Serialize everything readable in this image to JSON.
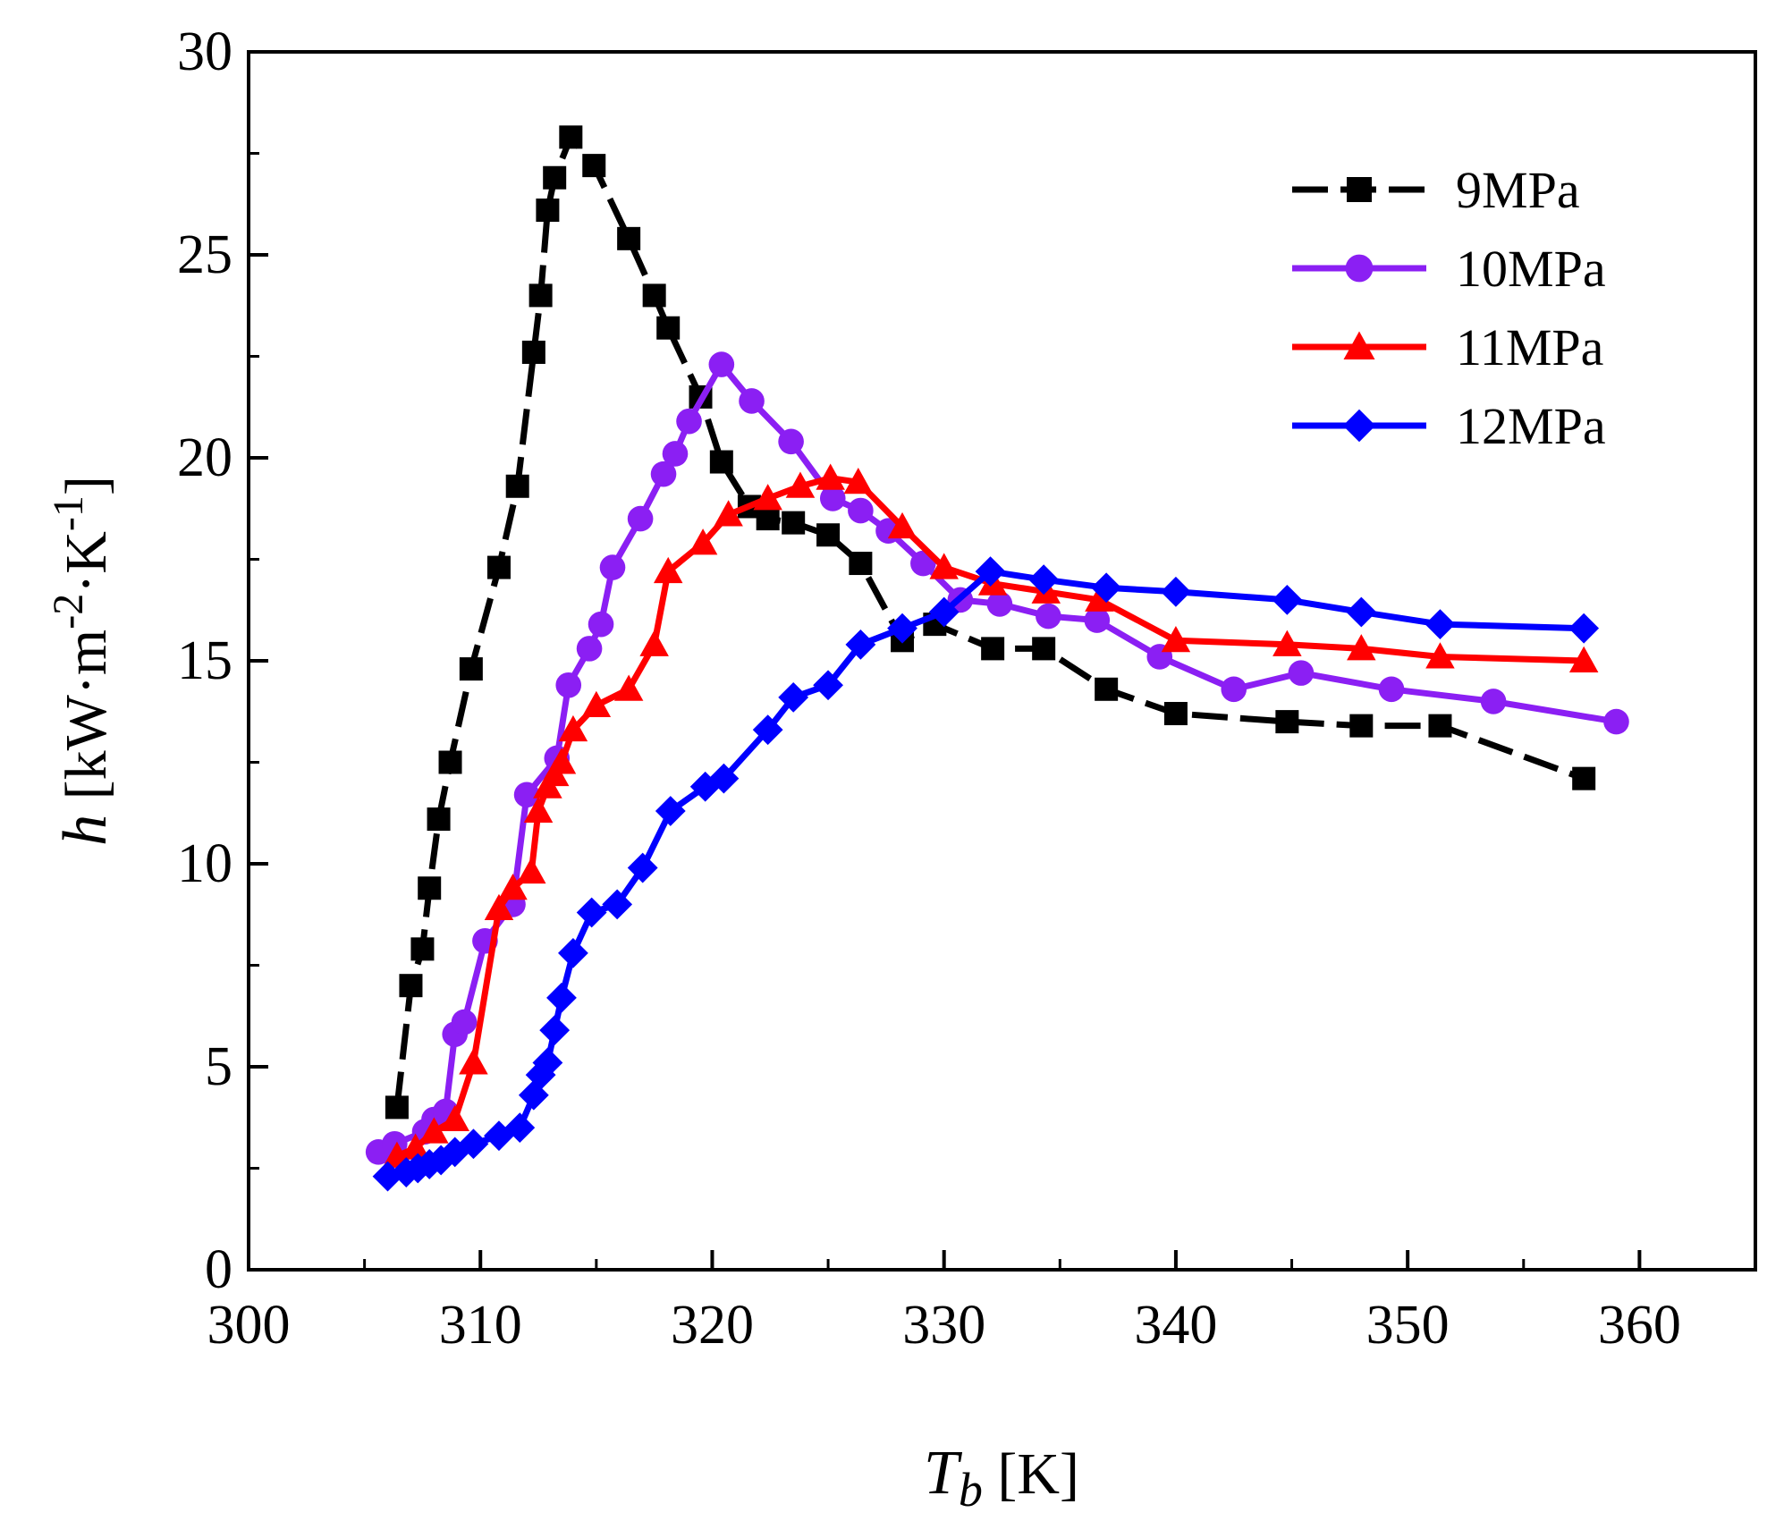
{
  "chart_data": {
    "type": "line",
    "title": "",
    "xlabel": "T_b [K]",
    "ylabel": "h [kW·m^-2·K^-1]",
    "xlabel_parts": {
      "symbol": "T",
      "subscript": "b",
      "unit": " [K]"
    },
    "ylabel_parts": {
      "symbol": "h",
      "p1": " [kW·m",
      "e1": "-2",
      "p2": "·K",
      "e2": "-1",
      "p3": "]"
    },
    "xlim": [
      300,
      365
    ],
    "ylim": [
      0,
      30
    ],
    "xticks": [
      300,
      310,
      320,
      330,
      340,
      350,
      360
    ],
    "yticks": [
      0,
      5,
      10,
      15,
      20,
      25,
      30
    ],
    "grid": false,
    "legend_position": "top-right",
    "series": [
      {
        "name": "9MPa",
        "color": "#000000",
        "marker": "square",
        "dashed": true,
        "x": [
          306.4,
          307.0,
          307.5,
          307.8,
          308.2,
          308.7,
          309.6,
          310.8,
          311.6,
          312.3,
          312.6,
          312.9,
          313.2,
          313.9,
          314.9,
          316.4,
          317.5,
          318.1,
          319.5,
          320.4,
          321.6,
          322.4,
          323.5,
          325.0,
          326.4,
          328.2,
          329.6,
          332.1,
          334.3,
          337.0,
          340.0,
          344.8,
          348.0,
          351.4,
          357.6
        ],
        "y": [
          4.0,
          7.0,
          7.9,
          9.4,
          11.1,
          12.5,
          14.8,
          17.3,
          19.3,
          22.6,
          24.0,
          26.1,
          26.9,
          27.9,
          27.2,
          25.4,
          24.0,
          23.2,
          21.5,
          19.9,
          18.8,
          18.5,
          18.4,
          18.1,
          17.4,
          15.5,
          15.9,
          15.3,
          15.3,
          14.3,
          13.7,
          13.5,
          13.4,
          13.4,
          12.1
        ]
      },
      {
        "name": "10MPa",
        "color": "#8B1FF3",
        "marker": "circle",
        "dashed": false,
        "x": [
          305.6,
          306.3,
          307.6,
          308.0,
          308.5,
          308.9,
          309.3,
          310.2,
          311.4,
          312.0,
          313.3,
          313.8,
          314.7,
          315.2,
          315.7,
          316.9,
          317.9,
          318.4,
          319.0,
          320.4,
          321.7,
          323.4,
          325.2,
          326.4,
          327.6,
          329.1,
          330.7,
          332.4,
          334.5,
          336.6,
          339.3,
          342.5,
          345.4,
          349.3,
          353.7,
          359.0
        ],
        "y": [
          2.9,
          3.1,
          3.4,
          3.7,
          3.9,
          5.8,
          6.1,
          8.1,
          9.0,
          11.7,
          12.6,
          14.4,
          15.3,
          15.9,
          17.3,
          18.5,
          19.6,
          20.1,
          20.9,
          22.3,
          21.4,
          20.4,
          19.0,
          18.7,
          18.2,
          17.4,
          16.5,
          16.4,
          16.1,
          16.0,
          15.1,
          14.3,
          14.7,
          14.3,
          14.0,
          13.5
        ]
      },
      {
        "name": "11MPa",
        "color": "#FF0000",
        "marker": "triangle",
        "dashed": false,
        "x": [
          306.4,
          307.2,
          308.0,
          308.9,
          309.7,
          310.8,
          311.4,
          312.2,
          312.5,
          312.9,
          313.2,
          313.5,
          314.0,
          315.0,
          316.4,
          317.5,
          318.1,
          319.6,
          320.7,
          322.4,
          323.8,
          325.1,
          326.3,
          328.2,
          330.0,
          332.1,
          334.4,
          336.7,
          340.0,
          344.8,
          348.0,
          351.4,
          357.6
        ],
        "y": [
          2.8,
          3.0,
          3.4,
          3.7,
          5.1,
          8.9,
          9.4,
          9.8,
          11.3,
          11.9,
          12.2,
          12.5,
          13.3,
          13.9,
          14.3,
          15.4,
          17.2,
          17.9,
          18.6,
          19.0,
          19.3,
          19.5,
          19.4,
          18.3,
          17.3,
          16.9,
          16.7,
          16.5,
          15.5,
          15.4,
          15.3,
          15.1,
          15.0
        ]
      },
      {
        "name": "12MPa",
        "color": "#0000FF",
        "marker": "diamond",
        "dashed": false,
        "x": [
          306.0,
          306.8,
          307.3,
          307.8,
          308.3,
          308.9,
          309.7,
          310.8,
          311.7,
          312.3,
          312.6,
          312.9,
          313.2,
          313.5,
          314.0,
          314.8,
          315.9,
          317.0,
          318.2,
          319.7,
          320.5,
          322.4,
          323.5,
          325.0,
          326.4,
          328.2,
          330.0,
          332.0,
          334.3,
          337.0,
          340.0,
          344.8,
          348.0,
          351.4,
          357.6
        ],
        "y": [
          2.3,
          2.4,
          2.5,
          2.6,
          2.7,
          2.9,
          3.1,
          3.3,
          3.5,
          4.3,
          4.8,
          5.1,
          5.9,
          6.7,
          7.8,
          8.8,
          9.0,
          9.9,
          11.3,
          11.9,
          12.1,
          13.3,
          14.1,
          14.4,
          15.4,
          15.8,
          16.2,
          17.2,
          17.0,
          16.8,
          16.7,
          16.5,
          16.2,
          15.9,
          15.8
        ]
      }
    ]
  }
}
